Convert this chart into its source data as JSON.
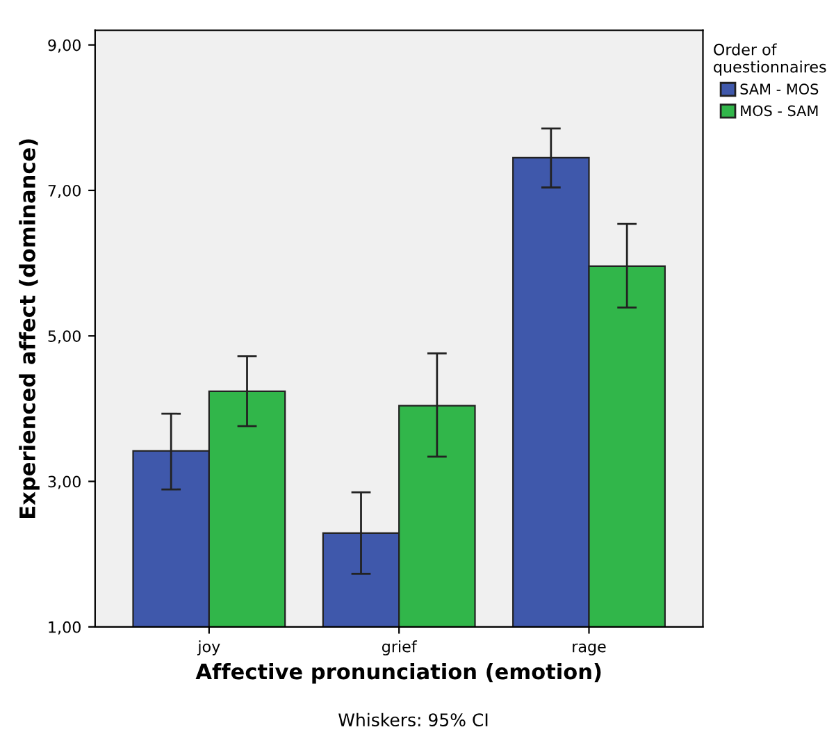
{
  "chart_data": {
    "type": "bar",
    "xlabel": "Affective pronunciation (emotion)",
    "ylabel": "Experienced affect (dominance)",
    "legend_title": "Order of\nquestionnaires",
    "categories": [
      "joy",
      "grief",
      "rage"
    ],
    "series": [
      {
        "name": "SAM - MOS",
        "color": "#3f58ab",
        "values": [
          3.42,
          2.29,
          7.45
        ],
        "errors": [
          [
            2.89,
            3.93
          ],
          [
            1.73,
            2.85
          ],
          [
            7.04,
            7.85
          ]
        ]
      },
      {
        "name": "MOS - SAM",
        "color": "#31b64a",
        "values": [
          4.24,
          4.04,
          5.96
        ],
        "errors": [
          [
            3.76,
            4.72
          ],
          [
            3.34,
            4.76
          ],
          [
            5.39,
            6.54
          ]
        ]
      }
    ],
    "ylim": [
      1,
      9.2
    ],
    "yticks": [
      {
        "value": 1,
        "label": "1,00"
      },
      {
        "value": 3,
        "label": "3,00"
      },
      {
        "value": 5,
        "label": "5,00"
      },
      {
        "value": 7,
        "label": "7,00"
      },
      {
        "value": 9,
        "label": "9,00"
      }
    ],
    "grid": false,
    "legend": "top right",
    "annotations": [
      "Whiskers: 95% CI"
    ]
  }
}
